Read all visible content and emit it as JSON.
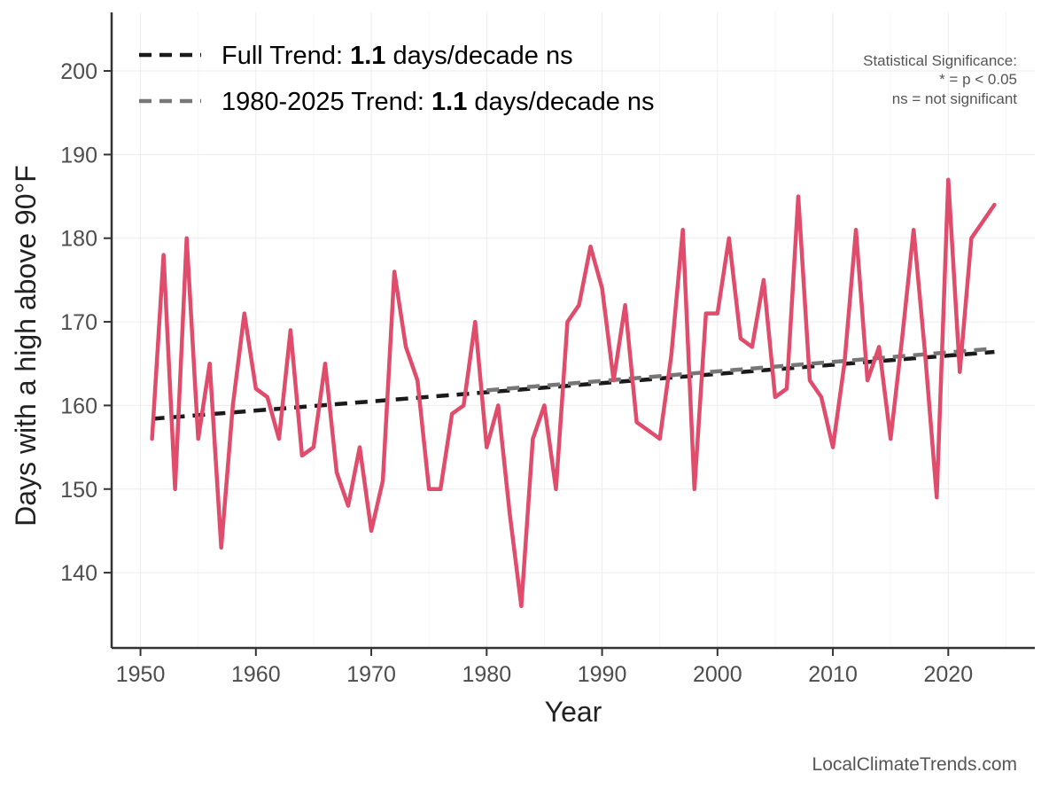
{
  "chart_data": {
    "type": "line",
    "xlabel": "Year",
    "ylabel": "Days with a high above 90°F",
    "xlim": [
      1947.5,
      2027.5
    ],
    "ylim": [
      131,
      207
    ],
    "x_ticks": [
      1950,
      1960,
      1970,
      1980,
      1990,
      2000,
      2010,
      2020
    ],
    "y_ticks": [
      140,
      150,
      160,
      170,
      180,
      190,
      200
    ],
    "grid": true,
    "legend_position": "top-left",
    "series": [
      {
        "color": "#e04c6c",
        "x": [
          1951,
          1952,
          1953,
          1954,
          1955,
          1956,
          1957,
          1958,
          1959,
          1960,
          1961,
          1962,
          1963,
          1964,
          1965,
          1966,
          1967,
          1968,
          1969,
          1970,
          1971,
          1972,
          1973,
          1974,
          1975,
          1976,
          1977,
          1978,
          1979,
          1980,
          1981,
          1982,
          1983,
          1984,
          1985,
          1986,
          1987,
          1988,
          1989,
          1990,
          1991,
          1992,
          1993,
          1994,
          1995,
          1996,
          1997,
          1998,
          1999,
          2000,
          2001,
          2002,
          2003,
          2004,
          2005,
          2006,
          2007,
          2008,
          2009,
          2010,
          2011,
          2012,
          2013,
          2014,
          2015,
          2016,
          2017,
          2018,
          2019,
          2020,
          2021,
          2022,
          2023,
          2024
        ],
        "values": [
          156,
          178,
          150,
          180,
          156,
          165,
          143,
          160,
          171,
          162,
          161,
          156,
          169,
          154,
          155,
          165,
          152,
          148,
          155,
          145,
          151,
          176,
          167,
          163,
          150,
          150,
          159,
          160,
          170,
          155,
          160,
          147,
          136,
          156,
          160,
          150,
          170,
          172,
          179,
          174,
          163,
          172,
          158,
          157,
          156,
          166,
          181,
          150,
          171,
          171,
          180,
          168,
          167,
          175,
          161,
          162,
          185,
          163,
          161,
          155,
          165,
          181,
          163,
          167,
          156,
          168,
          181,
          166,
          149,
          187,
          164,
          180,
          182,
          184
        ]
      }
    ],
    "trend_lines": [
      {
        "label_prefix": "Full Trend: ",
        "value": "1.1",
        "label_suffix": " days/decade ns",
        "color": "#1a1a1a",
        "x": [
          1951,
          2024
        ],
        "values": [
          158.4,
          166.4
        ]
      },
      {
        "label_prefix": "1980-2025 Trend: ",
        "value": "1.1",
        "label_suffix": " days/decade ns",
        "color": "#777777",
        "x": [
          1980,
          2024
        ],
        "values": [
          161.8,
          166.8
        ]
      }
    ],
    "annotations": {
      "significance_title": "Statistical Significance:",
      "significance_line1": "* = p < 0.05",
      "significance_line2": "ns = not significant"
    },
    "source": "LocalClimateTrends.com"
  }
}
